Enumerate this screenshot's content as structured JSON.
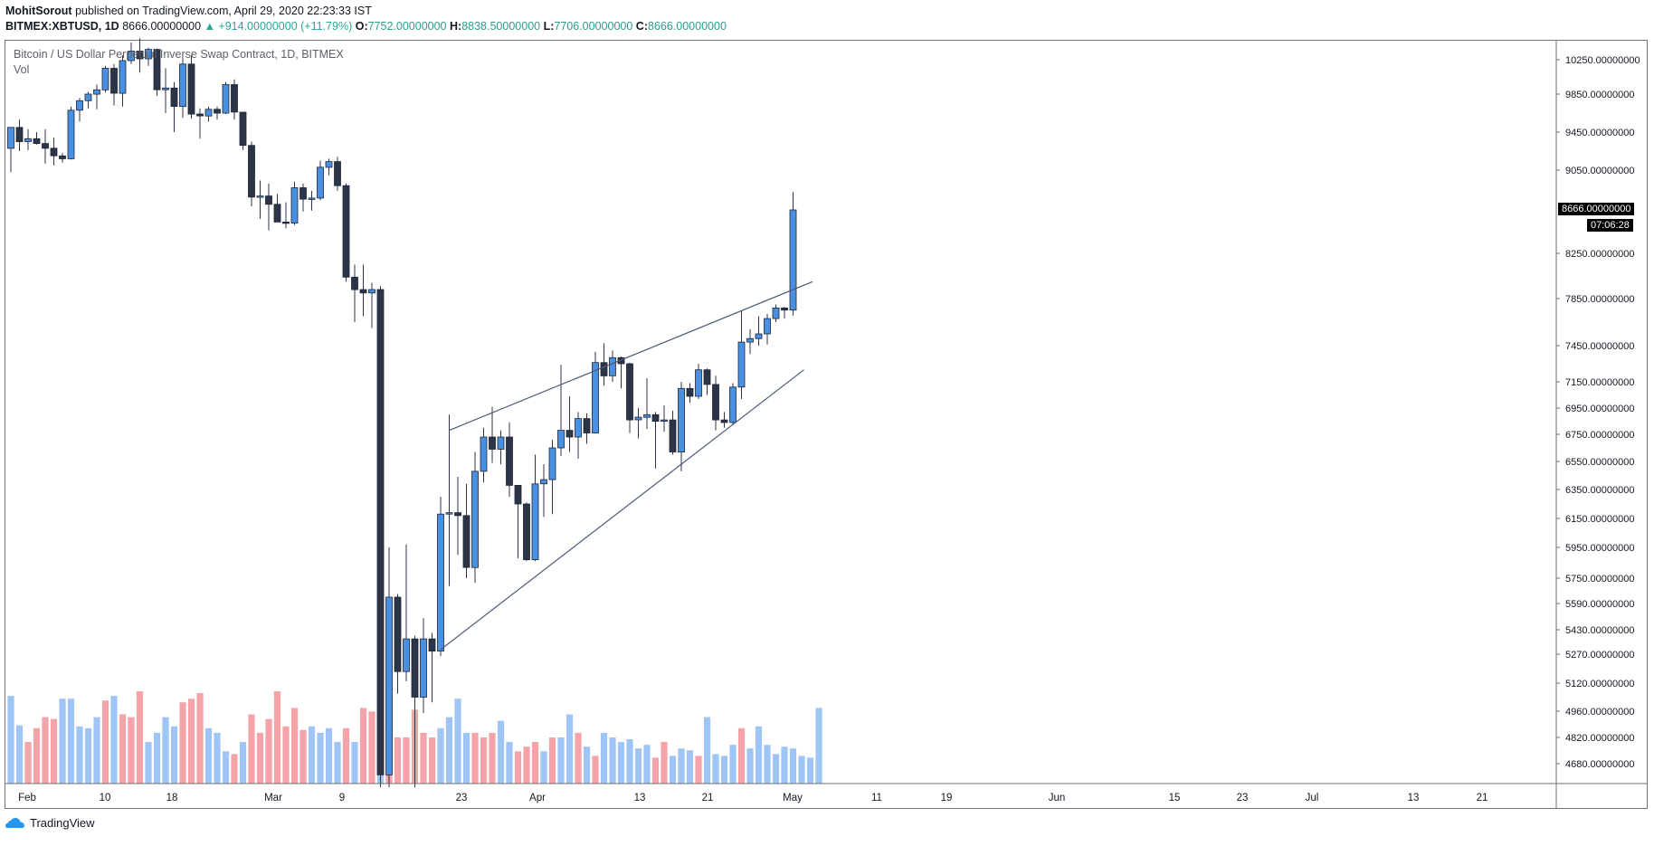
{
  "header": {
    "author": "MohitSorout",
    "published_text": "published on TradingView.com, April 29, 2020 22:23:33 IST"
  },
  "ohlc": {
    "symbol": "BITMEX:XBTUSD, 1D",
    "last": "8666.00000000",
    "change": "▲ +914.00000000 (+11.79%)",
    "o_label": "O:",
    "o_value": "7752.00000000",
    "h_label": "H:",
    "h_value": "8838.50000000",
    "l_label": "L:",
    "l_value": "7706.00000000",
    "c_label": "C:",
    "c_value": "8666.00000000"
  },
  "legend": {
    "title": "Bitcoin / US Dollar Perpetual Inverse Swap Contract, 1D, BITMEX",
    "volume": "Vol"
  },
  "price_tag": {
    "last_price": "8666.00000000",
    "countdown": "07:06:28"
  },
  "footer": {
    "brand": "TradingView"
  },
  "colors": {
    "up_candle": "#4a90e2",
    "down_candle": "#2c3448",
    "up_volume": "#9ec5f5",
    "down_volume": "#f4a3a8",
    "trendline": "#4a5a78"
  },
  "chart_data": {
    "type": "candlestick",
    "axis": {
      "y_ticks": [
        "10250.00000000",
        "9850.00000000",
        "9450.00000000",
        "9050.00000000",
        "8250.00000000",
        "7850.00000000",
        "7450.00000000",
        "7150.00000000",
        "6950.00000000",
        "6750.00000000",
        "6550.00000000",
        "6350.00000000",
        "6150.00000000",
        "5950.00000000",
        "5750.00000000",
        "5590.00000000",
        "5430.00000000",
        "5270.00000000",
        "5120.00000000",
        "4960.00000000",
        "4820.00000000",
        "4680.00000000"
      ],
      "x_ticks": [
        "Feb",
        "10",
        "18",
        "Mar",
        "9",
        "23",
        "Apr",
        "13",
        "21",
        "May",
        "11",
        "19",
        "Jun",
        "15",
        "23",
        "Jul",
        "13",
        "21"
      ],
      "scale": "log"
    },
    "trendlines": [
      {
        "name": "upper",
        "from": {
          "date": "2020-03-20",
          "price": 6780
        },
        "to": {
          "date": "2020-04-30",
          "price": 8000
        }
      },
      {
        "name": "lower",
        "from": {
          "date": "2020-03-19",
          "price": 5300
        },
        "to": {
          "date": "2020-04-29",
          "price": 7250
        }
      }
    ],
    "candles": [
      {
        "date": "2020-01-29",
        "o": 9280,
        "h": 9450,
        "l": 9030,
        "c": 9500
      },
      {
        "date": "2020-01-30",
        "o": 9500,
        "h": 9580,
        "l": 9250,
        "c": 9350
      },
      {
        "date": "2020-01-31",
        "o": 9350,
        "h": 9480,
        "l": 9260,
        "c": 9380
      },
      {
        "date": "2020-02-01",
        "o": 9380,
        "h": 9450,
        "l": 9320,
        "c": 9330
      },
      {
        "date": "2020-02-02",
        "o": 9330,
        "h": 9480,
        "l": 9120,
        "c": 9280
      },
      {
        "date": "2020-02-03",
        "o": 9280,
        "h": 9390,
        "l": 9100,
        "c": 9200
      },
      {
        "date": "2020-02-04",
        "o": 9200,
        "h": 9230,
        "l": 9130,
        "c": 9170
      },
      {
        "date": "2020-02-05",
        "o": 9170,
        "h": 9720,
        "l": 9160,
        "c": 9680
      },
      {
        "date": "2020-02-06",
        "o": 9680,
        "h": 9810,
        "l": 9560,
        "c": 9780
      },
      {
        "date": "2020-02-07",
        "o": 9780,
        "h": 9880,
        "l": 9700,
        "c": 9850
      },
      {
        "date": "2020-02-08",
        "o": 9850,
        "h": 9960,
        "l": 9690,
        "c": 9900
      },
      {
        "date": "2020-02-09",
        "o": 9900,
        "h": 10180,
        "l": 9870,
        "c": 10150
      },
      {
        "date": "2020-02-10",
        "o": 10150,
        "h": 10200,
        "l": 9730,
        "c": 9860
      },
      {
        "date": "2020-02-11",
        "o": 9860,
        "h": 10300,
        "l": 9720,
        "c": 10240
      },
      {
        "date": "2020-02-12",
        "o": 10240,
        "h": 10450,
        "l": 10200,
        "c": 10350
      },
      {
        "date": "2020-02-13",
        "o": 10350,
        "h": 10500,
        "l": 10100,
        "c": 10260
      },
      {
        "date": "2020-02-14",
        "o": 10260,
        "h": 10390,
        "l": 10180,
        "c": 10370
      },
      {
        "date": "2020-02-15",
        "o": 10370,
        "h": 10380,
        "l": 9830,
        "c": 9900
      },
      {
        "date": "2020-02-16",
        "o": 9900,
        "h": 10150,
        "l": 9650,
        "c": 9920
      },
      {
        "date": "2020-02-17",
        "o": 9920,
        "h": 9990,
        "l": 9450,
        "c": 9720
      },
      {
        "date": "2020-02-18",
        "o": 9720,
        "h": 10270,
        "l": 9600,
        "c": 10200
      },
      {
        "date": "2020-02-19",
        "o": 10200,
        "h": 10300,
        "l": 9590,
        "c": 9640
      },
      {
        "date": "2020-02-20",
        "o": 9640,
        "h": 9700,
        "l": 9380,
        "c": 9620
      },
      {
        "date": "2020-02-21",
        "o": 9620,
        "h": 9720,
        "l": 9560,
        "c": 9690
      },
      {
        "date": "2020-02-22",
        "o": 9690,
        "h": 9720,
        "l": 9580,
        "c": 9650
      },
      {
        "date": "2020-02-23",
        "o": 9650,
        "h": 9990,
        "l": 9640,
        "c": 9960
      },
      {
        "date": "2020-02-24",
        "o": 9960,
        "h": 10020,
        "l": 9580,
        "c": 9660
      },
      {
        "date": "2020-02-25",
        "o": 9660,
        "h": 9660,
        "l": 9260,
        "c": 9310
      },
      {
        "date": "2020-02-26",
        "o": 9310,
        "h": 9350,
        "l": 8700,
        "c": 8790
      },
      {
        "date": "2020-02-27",
        "o": 8790,
        "h": 8950,
        "l": 8580,
        "c": 8800
      },
      {
        "date": "2020-02-28",
        "o": 8800,
        "h": 8920,
        "l": 8470,
        "c": 8720
      },
      {
        "date": "2020-02-29",
        "o": 8720,
        "h": 8820,
        "l": 8550,
        "c": 8550
      },
      {
        "date": "2020-03-01",
        "o": 8550,
        "h": 8740,
        "l": 8490,
        "c": 8540
      },
      {
        "date": "2020-03-02",
        "o": 8540,
        "h": 8940,
        "l": 8520,
        "c": 8880
      },
      {
        "date": "2020-03-03",
        "o": 8880,
        "h": 8920,
        "l": 8650,
        "c": 8770
      },
      {
        "date": "2020-03-04",
        "o": 8770,
        "h": 8850,
        "l": 8660,
        "c": 8780
      },
      {
        "date": "2020-03-05",
        "o": 8780,
        "h": 9150,
        "l": 8760,
        "c": 9080
      },
      {
        "date": "2020-03-06",
        "o": 9080,
        "h": 9170,
        "l": 9000,
        "c": 9140
      },
      {
        "date": "2020-03-07",
        "o": 9140,
        "h": 9190,
        "l": 8850,
        "c": 8900
      },
      {
        "date": "2020-03-08",
        "o": 8900,
        "h": 8920,
        "l": 8000,
        "c": 8040
      },
      {
        "date": "2020-03-09",
        "o": 8040,
        "h": 8150,
        "l": 7650,
        "c": 7930
      },
      {
        "date": "2020-03-10",
        "o": 7930,
        "h": 8150,
        "l": 7700,
        "c": 7900
      },
      {
        "date": "2020-03-11",
        "o": 7900,
        "h": 7990,
        "l": 7600,
        "c": 7930
      },
      {
        "date": "2020-03-12",
        "o": 7930,
        "h": 7960,
        "l": 4500,
        "c": 4620
      },
      {
        "date": "2020-03-13",
        "o": 4620,
        "h": 5950,
        "l": 3600,
        "c": 5630
      },
      {
        "date": "2020-03-14",
        "o": 5630,
        "h": 5650,
        "l": 5060,
        "c": 5180
      },
      {
        "date": "2020-03-15",
        "o": 5180,
        "h": 5970,
        "l": 5130,
        "c": 5370
      },
      {
        "date": "2020-03-16",
        "o": 5370,
        "h": 5390,
        "l": 4400,
        "c": 5040
      },
      {
        "date": "2020-03-17",
        "o": 5040,
        "h": 5500,
        "l": 4950,
        "c": 5370
      },
      {
        "date": "2020-03-18",
        "o": 5370,
        "h": 5410,
        "l": 5010,
        "c": 5290
      },
      {
        "date": "2020-03-19",
        "o": 5290,
        "h": 6300,
        "l": 5260,
        "c": 6180
      },
      {
        "date": "2020-03-20",
        "o": 6180,
        "h": 6900,
        "l": 5700,
        "c": 6190
      },
      {
        "date": "2020-03-21",
        "o": 6190,
        "h": 6440,
        "l": 5900,
        "c": 6170
      },
      {
        "date": "2020-03-22",
        "o": 6170,
        "h": 6390,
        "l": 5750,
        "c": 5820
      },
      {
        "date": "2020-03-23",
        "o": 5820,
        "h": 6620,
        "l": 5720,
        "c": 6480
      },
      {
        "date": "2020-03-24",
        "o": 6480,
        "h": 6800,
        "l": 6400,
        "c": 6730
      },
      {
        "date": "2020-03-25",
        "o": 6730,
        "h": 6960,
        "l": 6540,
        "c": 6640
      },
      {
        "date": "2020-03-26",
        "o": 6640,
        "h": 6780,
        "l": 6530,
        "c": 6730
      },
      {
        "date": "2020-03-27",
        "o": 6730,
        "h": 6840,
        "l": 6300,
        "c": 6380
      },
      {
        "date": "2020-03-28",
        "o": 6380,
        "h": 6380,
        "l": 5880,
        "c": 6250
      },
      {
        "date": "2020-03-29",
        "o": 6250,
        "h": 6260,
        "l": 5860,
        "c": 5870
      },
      {
        "date": "2020-03-30",
        "o": 5870,
        "h": 6600,
        "l": 5860,
        "c": 6390
      },
      {
        "date": "2020-03-31",
        "o": 6390,
        "h": 6530,
        "l": 6160,
        "c": 6420
      },
      {
        "date": "2020-04-01",
        "o": 6420,
        "h": 6710,
        "l": 6180,
        "c": 6650
      },
      {
        "date": "2020-04-02",
        "o": 6650,
        "h": 7290,
        "l": 6590,
        "c": 6780
      },
      {
        "date": "2020-04-03",
        "o": 6780,
        "h": 7040,
        "l": 6620,
        "c": 6730
      },
      {
        "date": "2020-04-04",
        "o": 6730,
        "h": 6920,
        "l": 6570,
        "c": 6870
      },
      {
        "date": "2020-04-05",
        "o": 6870,
        "h": 6910,
        "l": 6680,
        "c": 6760
      },
      {
        "date": "2020-04-06",
        "o": 6760,
        "h": 7400,
        "l": 6760,
        "c": 7310
      },
      {
        "date": "2020-04-07",
        "o": 7310,
        "h": 7470,
        "l": 7120,
        "c": 7200
      },
      {
        "date": "2020-04-08",
        "o": 7200,
        "h": 7410,
        "l": 7150,
        "c": 7350
      },
      {
        "date": "2020-04-09",
        "o": 7350,
        "h": 7360,
        "l": 7100,
        "c": 7300
      },
      {
        "date": "2020-04-10",
        "o": 7300,
        "h": 7310,
        "l": 6760,
        "c": 6860
      },
      {
        "date": "2020-04-11",
        "o": 6860,
        "h": 6950,
        "l": 6720,
        "c": 6880
      },
      {
        "date": "2020-04-12",
        "o": 6880,
        "h": 7180,
        "l": 6790,
        "c": 6900
      },
      {
        "date": "2020-04-13",
        "o": 6900,
        "h": 6920,
        "l": 6500,
        "c": 6850
      },
      {
        "date": "2020-04-14",
        "o": 6850,
        "h": 6970,
        "l": 6770,
        "c": 6860
      },
      {
        "date": "2020-04-15",
        "o": 6860,
        "h": 6930,
        "l": 6600,
        "c": 6620
      },
      {
        "date": "2020-04-16",
        "o": 6620,
        "h": 7150,
        "l": 6480,
        "c": 7100
      },
      {
        "date": "2020-04-17",
        "o": 7100,
        "h": 7140,
        "l": 6990,
        "c": 7040
      },
      {
        "date": "2020-04-18",
        "o": 7040,
        "h": 7300,
        "l": 7020,
        "c": 7250
      },
      {
        "date": "2020-04-19",
        "o": 7250,
        "h": 7260,
        "l": 7050,
        "c": 7130
      },
      {
        "date": "2020-04-20",
        "o": 7130,
        "h": 7200,
        "l": 6780,
        "c": 6860
      },
      {
        "date": "2020-04-21",
        "o": 6860,
        "h": 6920,
        "l": 6800,
        "c": 6840
      },
      {
        "date": "2020-04-22",
        "o": 6840,
        "h": 7140,
        "l": 6820,
        "c": 7110
      },
      {
        "date": "2020-04-23",
        "o": 7110,
        "h": 7750,
        "l": 7020,
        "c": 7480
      },
      {
        "date": "2020-04-24",
        "o": 7480,
        "h": 7590,
        "l": 7380,
        "c": 7510
      },
      {
        "date": "2020-04-25",
        "o": 7510,
        "h": 7700,
        "l": 7450,
        "c": 7550
      },
      {
        "date": "2020-04-26",
        "o": 7550,
        "h": 7720,
        "l": 7460,
        "c": 7680
      },
      {
        "date": "2020-04-27",
        "o": 7680,
        "h": 7800,
        "l": 7650,
        "c": 7770
      },
      {
        "date": "2020-04-28",
        "o": 7770,
        "h": 7780,
        "l": 7680,
        "c": 7752
      },
      {
        "date": "2020-04-29",
        "o": 7752,
        "h": 8838.5,
        "l": 7706,
        "c": 8666
      }
    ],
    "volumes": [
      {
        "dir": "up",
        "v": 0.95
      },
      {
        "dir": "up",
        "v": 0.63
      },
      {
        "dir": "down",
        "v": 0.45
      },
      {
        "dir": "down",
        "v": 0.6
      },
      {
        "dir": "down",
        "v": 0.72
      },
      {
        "dir": "down",
        "v": 0.7
      },
      {
        "dir": "up",
        "v": 0.92
      },
      {
        "dir": "up",
        "v": 0.92
      },
      {
        "dir": "up",
        "v": 0.62
      },
      {
        "dir": "up",
        "v": 0.6
      },
      {
        "dir": "up",
        "v": 0.72
      },
      {
        "dir": "down",
        "v": 0.9
      },
      {
        "dir": "up",
        "v": 0.95
      },
      {
        "dir": "down",
        "v": 0.75
      },
      {
        "dir": "down",
        "v": 0.72
      },
      {
        "dir": "down",
        "v": 1.0
      },
      {
        "dir": "up",
        "v": 0.45
      },
      {
        "dir": "up",
        "v": 0.55
      },
      {
        "dir": "up",
        "v": 0.72
      },
      {
        "dir": "up",
        "v": 0.62
      },
      {
        "dir": "down",
        "v": 0.88
      },
      {
        "dir": "down",
        "v": 0.92
      },
      {
        "dir": "down",
        "v": 0.98
      },
      {
        "dir": "up",
        "v": 0.6
      },
      {
        "dir": "up",
        "v": 0.55
      },
      {
        "dir": "up",
        "v": 0.35
      },
      {
        "dir": "down",
        "v": 0.32
      },
      {
        "dir": "up",
        "v": 0.45
      },
      {
        "dir": "down",
        "v": 0.75
      },
      {
        "dir": "down",
        "v": 0.55
      },
      {
        "dir": "down",
        "v": 0.7
      },
      {
        "dir": "down",
        "v": 1.0
      },
      {
        "dir": "down",
        "v": 0.62
      },
      {
        "dir": "down",
        "v": 0.82
      },
      {
        "dir": "down",
        "v": 0.58
      },
      {
        "dir": "up",
        "v": 0.62
      },
      {
        "dir": "up",
        "v": 0.55
      },
      {
        "dir": "up",
        "v": 0.6
      },
      {
        "dir": "up",
        "v": 0.45
      },
      {
        "dir": "down",
        "v": 0.6
      },
      {
        "dir": "up",
        "v": 0.45
      },
      {
        "dir": "down",
        "v": 0.82
      },
      {
        "dir": "down",
        "v": 0.78
      },
      {
        "dir": "up",
        "v": 0.6
      },
      {
        "dir": "down",
        "v": 1.05
      },
      {
        "dir": "down",
        "v": 0.5
      },
      {
        "dir": "down",
        "v": 0.5
      },
      {
        "dir": "down",
        "v": 0.8
      },
      {
        "dir": "down",
        "v": 0.55
      },
      {
        "dir": "down",
        "v": 0.5
      },
      {
        "dir": "up",
        "v": 0.6
      },
      {
        "dir": "up",
        "v": 0.72
      },
      {
        "dir": "up",
        "v": 0.92
      },
      {
        "dir": "up",
        "v": 0.55
      },
      {
        "dir": "down",
        "v": 0.55
      },
      {
        "dir": "down",
        "v": 0.5
      },
      {
        "dir": "down",
        "v": 0.55
      },
      {
        "dir": "up",
        "v": 0.68
      },
      {
        "dir": "up",
        "v": 0.45
      },
      {
        "dir": "down",
        "v": 0.35
      },
      {
        "dir": "down",
        "v": 0.4
      },
      {
        "dir": "down",
        "v": 0.45
      },
      {
        "dir": "up",
        "v": 0.35
      },
      {
        "dir": "down",
        "v": 0.5
      },
      {
        "dir": "up",
        "v": 0.5
      },
      {
        "dir": "up",
        "v": 0.75
      },
      {
        "dir": "down",
        "v": 0.55
      },
      {
        "dir": "up",
        "v": 0.4
      },
      {
        "dir": "down",
        "v": 0.3
      },
      {
        "dir": "up",
        "v": 0.55
      },
      {
        "dir": "up",
        "v": 0.5
      },
      {
        "dir": "up",
        "v": 0.45
      },
      {
        "dir": "up",
        "v": 0.48
      },
      {
        "dir": "up",
        "v": 0.38
      },
      {
        "dir": "up",
        "v": 0.42
      },
      {
        "dir": "down",
        "v": 0.28
      },
      {
        "dir": "down",
        "v": 0.45
      },
      {
        "dir": "up",
        "v": 0.3
      },
      {
        "dir": "up",
        "v": 0.38
      },
      {
        "dir": "up",
        "v": 0.36
      },
      {
        "dir": "down",
        "v": 0.3
      },
      {
        "dir": "up",
        "v": 0.72
      },
      {
        "dir": "up",
        "v": 0.32
      },
      {
        "dir": "up",
        "v": 0.3
      },
      {
        "dir": "up",
        "v": 0.42
      },
      {
        "dir": "down",
        "v": 0.6
      },
      {
        "dir": "up",
        "v": 0.38
      },
      {
        "dir": "up",
        "v": 0.62
      },
      {
        "dir": "up",
        "v": 0.42
      },
      {
        "dir": "up",
        "v": 0.32
      },
      {
        "dir": "up",
        "v": 0.4
      },
      {
        "dir": "up",
        "v": 0.38
      },
      {
        "dir": "up",
        "v": 0.3
      },
      {
        "dir": "up",
        "v": 0.28
      },
      {
        "dir": "up",
        "v": 0.82
      }
    ]
  }
}
